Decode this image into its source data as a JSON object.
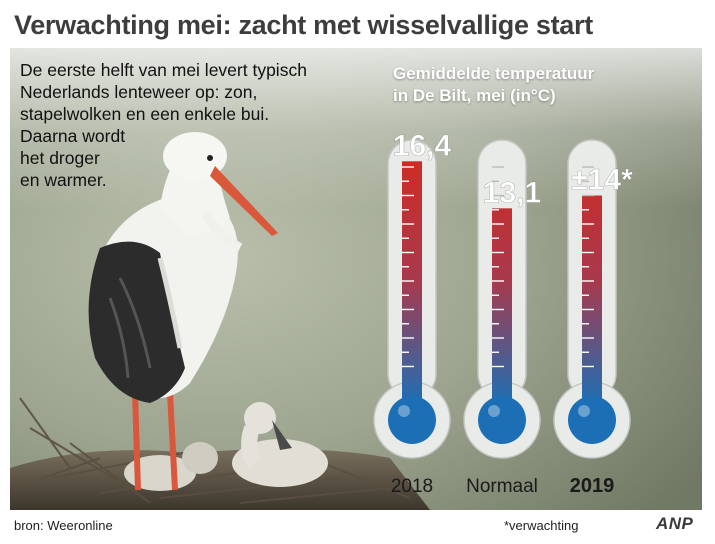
{
  "title": "Verwachting mei: zacht met wisselvallige start",
  "intro_lines": [
    "De eerste helft van mei levert typisch",
    "Nederlands lenteweer op: zon,",
    "stapelwolken en een enkele bui.",
    "Daarna wordt",
    "het droger",
    "en warmer."
  ],
  "chart_data": {
    "type": "bar",
    "title_lines": [
      "Gemiddelde temperatuur",
      "in De Bilt, mei (in°C)"
    ],
    "categories": [
      "2018",
      "Normaal",
      "2019"
    ],
    "values": [
      16.4,
      13.1,
      14
    ],
    "value_labels": [
      "16,4",
      "13,1",
      "±14*"
    ],
    "ylim": [
      0,
      20
    ],
    "style": "thermometer"
  },
  "footer": {
    "source": "bron: Weeronline",
    "footnote": "*verwachting",
    "logo": "ANP"
  },
  "colors": {
    "mercury_top": "#d42a1e",
    "mercury_bottom": "#1d6fb5",
    "title_text": "#3d3d3d"
  }
}
